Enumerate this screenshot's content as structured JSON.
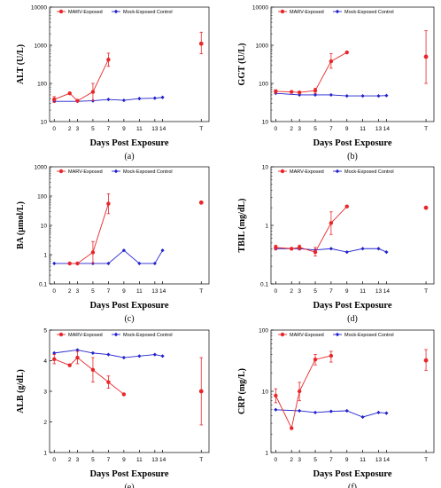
{
  "colors": {
    "marv": "#e8262a",
    "mock": "#2222cc"
  },
  "legend": {
    "marv": "MARV-Exposed",
    "mock": "Mock-Exposed Control"
  },
  "xticks": [
    {
      "label": "0",
      "x": 0
    },
    {
      "label": "2",
      "x": 2
    },
    {
      "label": "3",
      "x": 3
    },
    {
      "label": "5",
      "x": 5
    },
    {
      "label": "7",
      "x": 7
    },
    {
      "label": "9",
      "x": 9
    },
    {
      "label": "11",
      "x": 11
    },
    {
      "label": "13",
      "x": 13
    },
    {
      "label": "14",
      "x": 14
    },
    {
      "label": "T",
      "x": 19
    }
  ],
  "chart_data": [
    {
      "type": "line",
      "caption": "(a)",
      "ylabel": "ALT (U/L)",
      "xlabel": "Days Post Exposure",
      "yscale": "log",
      "ylim": [
        10,
        10000
      ],
      "yticks": [
        {
          "v": 10,
          "label": "10"
        },
        {
          "v": 100,
          "label": "100"
        },
        {
          "v": 1000,
          "label": "1000"
        },
        {
          "v": 10000,
          "label": "10000"
        }
      ],
      "series": [
        {
          "name": "MARV-Exposed",
          "key": "marv",
          "line": [
            {
              "x": 0,
              "y": 38
            },
            {
              "x": 2,
              "y": 55
            },
            {
              "x": 3,
              "y": 35
            },
            {
              "x": 5,
              "y": 60
            },
            {
              "x": 7,
              "y": 420
            }
          ],
          "errors": [
            {
              "x": 0,
              "lo": 32,
              "hi": 45
            },
            {
              "x": 5,
              "lo": 35,
              "hi": 100
            },
            {
              "x": 7,
              "lo": 280,
              "hi": 620
            }
          ],
          "isolated": [
            {
              "x": 19,
              "y": 1100,
              "lo": 600,
              "hi": 2200
            }
          ]
        },
        {
          "name": "Mock-Exposed Control",
          "key": "mock",
          "line": [
            {
              "x": 0,
              "y": 34
            },
            {
              "x": 3,
              "y": 34
            },
            {
              "x": 5,
              "y": 35
            },
            {
              "x": 7,
              "y": 38
            },
            {
              "x": 9,
              "y": 36
            },
            {
              "x": 11,
              "y": 40
            },
            {
              "x": 13,
              "y": 41
            },
            {
              "x": 14,
              "y": 43
            }
          ]
        }
      ]
    },
    {
      "type": "line",
      "caption": "(b)",
      "ylabel": "GGT (U/L)",
      "xlabel": "Days Post Exposure",
      "yscale": "log",
      "ylim": [
        10,
        10000
      ],
      "yticks": [
        {
          "v": 10,
          "label": "10"
        },
        {
          "v": 100,
          "label": "100"
        },
        {
          "v": 1000,
          "label": "1000"
        },
        {
          "v": 10000,
          "label": "10000"
        }
      ],
      "series": [
        {
          "name": "MARV-Exposed",
          "key": "marv",
          "line": [
            {
              "x": 0,
              "y": 62
            },
            {
              "x": 2,
              "y": 60
            },
            {
              "x": 3,
              "y": 58
            },
            {
              "x": 5,
              "y": 65
            },
            {
              "x": 7,
              "y": 380
            },
            {
              "x": 9,
              "y": 650
            }
          ],
          "errors": [
            {
              "x": 0,
              "lo": 55,
              "hi": 68
            },
            {
              "x": 5,
              "lo": 55,
              "hi": 75
            },
            {
              "x": 7,
              "lo": 250,
              "hi": 600
            }
          ],
          "isolated": [
            {
              "x": 19,
              "y": 500,
              "lo": 100,
              "hi": 2400
            }
          ]
        },
        {
          "name": "Mock-Exposed Control",
          "key": "mock",
          "line": [
            {
              "x": 0,
              "y": 55
            },
            {
              "x": 3,
              "y": 50
            },
            {
              "x": 5,
              "y": 50
            },
            {
              "x": 7,
              "y": 50
            },
            {
              "x": 9,
              "y": 47
            },
            {
              "x": 11,
              "y": 47
            },
            {
              "x": 13,
              "y": 47
            },
            {
              "x": 14,
              "y": 48
            }
          ]
        }
      ]
    },
    {
      "type": "line",
      "caption": "(c)",
      "ylabel": "BA (µmol/L)",
      "xlabel": "Days Post Exposure",
      "yscale": "log",
      "ylim": [
        0.1,
        1000
      ],
      "yticks": [
        {
          "v": 0.1,
          "label": "0.1"
        },
        {
          "v": 1,
          "label": "1"
        },
        {
          "v": 10,
          "label": "10"
        },
        {
          "v": 100,
          "label": "100"
        },
        {
          "v": 1000,
          "label": "1000"
        }
      ],
      "series": [
        {
          "name": "MARV-Exposed",
          "key": "marv",
          "line": [
            {
              "x": 2,
              "y": 0.5
            },
            {
              "x": 3,
              "y": 0.5
            },
            {
              "x": 5,
              "y": 1.2
            },
            {
              "x": 7,
              "y": 55
            }
          ],
          "errors": [
            {
              "x": 5,
              "lo": 0.5,
              "hi": 2.8
            },
            {
              "x": 7,
              "lo": 25,
              "hi": 120
            }
          ],
          "isolated": [
            {
              "x": 19,
              "y": 60
            }
          ]
        },
        {
          "name": "Mock-Exposed Control",
          "key": "mock",
          "line": [
            {
              "x": 0,
              "y": 0.5
            },
            {
              "x": 2,
              "y": 0.5
            },
            {
              "x": 3,
              "y": 0.5
            },
            {
              "x": 5,
              "y": 0.5
            },
            {
              "x": 7,
              "y": 0.5
            },
            {
              "x": 9,
              "y": 1.4
            },
            {
              "x": 11,
              "y": 0.5
            },
            {
              "x": 13,
              "y": 0.5
            },
            {
              "x": 14,
              "y": 1.4
            }
          ]
        }
      ]
    },
    {
      "type": "line",
      "caption": "(d)",
      "ylabel": "TBIL (mg/dL)",
      "xlabel": "Days Post Exposure",
      "yscale": "log",
      "ylim": [
        0.1,
        10
      ],
      "yticks": [
        {
          "v": 0.1,
          "label": "0.1"
        },
        {
          "v": 1,
          "label": "1"
        },
        {
          "v": 10,
          "label": "10"
        }
      ],
      "series": [
        {
          "name": "MARV-Exposed",
          "key": "marv",
          "line": [
            {
              "x": 0,
              "y": 0.42
            },
            {
              "x": 2,
              "y": 0.4
            },
            {
              "x": 3,
              "y": 0.42
            },
            {
              "x": 5,
              "y": 0.35
            },
            {
              "x": 7,
              "y": 1.1
            },
            {
              "x": 9,
              "y": 2.1
            }
          ],
          "errors": [
            {
              "x": 0,
              "lo": 0.38,
              "hi": 0.46
            },
            {
              "x": 3,
              "lo": 0.38,
              "hi": 0.46
            },
            {
              "x": 5,
              "lo": 0.3,
              "hi": 0.42
            },
            {
              "x": 7,
              "lo": 0.7,
              "hi": 1.7
            }
          ],
          "isolated": [
            {
              "x": 19,
              "y": 2.0
            }
          ]
        },
        {
          "name": "Mock-Exposed Control",
          "key": "mock",
          "line": [
            {
              "x": 0,
              "y": 0.4
            },
            {
              "x": 2,
              "y": 0.4
            },
            {
              "x": 3,
              "y": 0.4
            },
            {
              "x": 5,
              "y": 0.38
            },
            {
              "x": 7,
              "y": 0.4
            },
            {
              "x": 9,
              "y": 0.35
            },
            {
              "x": 11,
              "y": 0.4
            },
            {
              "x": 13,
              "y": 0.4
            },
            {
              "x": 14,
              "y": 0.35
            }
          ]
        }
      ]
    },
    {
      "type": "line",
      "caption": "(e)",
      "ylabel": "ALB (g/dL)",
      "xlabel": "Days Post Exposure",
      "yscale": "linear",
      "ylim": [
        1,
        5
      ],
      "yticks": [
        {
          "v": 1,
          "label": "1"
        },
        {
          "v": 2,
          "label": "2"
        },
        {
          "v": 3,
          "label": "3"
        },
        {
          "v": 4,
          "label": "4"
        },
        {
          "v": 5,
          "label": "5"
        }
      ],
      "series": [
        {
          "name": "MARV-Exposed",
          "key": "marv",
          "line": [
            {
              "x": 0,
              "y": 4.05
            },
            {
              "x": 2,
              "y": 3.85
            },
            {
              "x": 3,
              "y": 4.1
            },
            {
              "x": 5,
              "y": 3.7
            },
            {
              "x": 7,
              "y": 3.3
            },
            {
              "x": 9,
              "y": 2.9
            }
          ],
          "errors": [
            {
              "x": 0,
              "lo": 3.9,
              "hi": 4.2
            },
            {
              "x": 3,
              "lo": 3.9,
              "hi": 4.3
            },
            {
              "x": 5,
              "lo": 3.3,
              "hi": 4.1
            },
            {
              "x": 7,
              "lo": 3.1,
              "hi": 3.5
            }
          ],
          "isolated": [
            {
              "x": 19,
              "y": 3.0,
              "lo": 1.9,
              "hi": 4.1
            }
          ]
        },
        {
          "name": "Mock-Exposed Control",
          "key": "mock",
          "line": [
            {
              "x": 0,
              "y": 4.25
            },
            {
              "x": 3,
              "y": 4.35
            },
            {
              "x": 5,
              "y": 4.25
            },
            {
              "x": 7,
              "y": 4.2
            },
            {
              "x": 9,
              "y": 4.1
            },
            {
              "x": 11,
              "y": 4.15
            },
            {
              "x": 13,
              "y": 4.2
            },
            {
              "x": 14,
              "y": 4.15
            }
          ]
        }
      ]
    },
    {
      "type": "line",
      "caption": "(f)",
      "ylabel": "CRP (mg/L)",
      "xlabel": "Days Post Exposure",
      "yscale": "log",
      "ylim": [
        1,
        100
      ],
      "yticks": [
        {
          "v": 1,
          "label": "1"
        },
        {
          "v": 10,
          "label": "10"
        },
        {
          "v": 100,
          "label": "100"
        }
      ],
      "series": [
        {
          "name": "MARV-Exposed",
          "key": "marv",
          "line": [
            {
              "x": 0,
              "y": 8.5
            },
            {
              "x": 2,
              "y": 2.5
            },
            {
              "x": 3,
              "y": 10
            },
            {
              "x": 5,
              "y": 33
            },
            {
              "x": 7,
              "y": 38
            }
          ],
          "errors": [
            {
              "x": 0,
              "lo": 6.5,
              "hi": 11
            },
            {
              "x": 3,
              "lo": 7,
              "hi": 14
            },
            {
              "x": 5,
              "lo": 27,
              "hi": 40
            },
            {
              "x": 7,
              "lo": 30,
              "hi": 45
            }
          ],
          "isolated": [
            {
              "x": 19,
              "y": 32,
              "lo": 22,
              "hi": 48
            }
          ]
        },
        {
          "name": "Mock-Exposed Control",
          "key": "mock",
          "line": [
            {
              "x": 0,
              "y": 5
            },
            {
              "x": 3,
              "y": 4.8
            },
            {
              "x": 5,
              "y": 4.5
            },
            {
              "x": 7,
              "y": 4.7
            },
            {
              "x": 9,
              "y": 4.8
            },
            {
              "x": 11,
              "y": 3.8
            },
            {
              "x": 13,
              "y": 4.5
            },
            {
              "x": 14,
              "y": 4.4
            }
          ]
        }
      ]
    }
  ]
}
